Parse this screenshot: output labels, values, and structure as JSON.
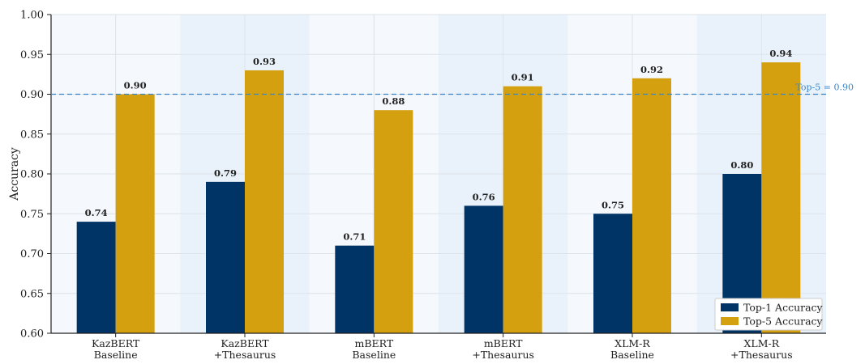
{
  "chart_data": {
    "type": "bar",
    "categories": [
      [
        "KazBERT",
        "Baseline"
      ],
      [
        "KazBERT",
        "+Thesaurus"
      ],
      [
        "mBERT",
        "Baseline"
      ],
      [
        "mBERT",
        "+Thesaurus"
      ],
      [
        "XLM-R",
        "Baseline"
      ],
      [
        "XLM-R",
        "+Thesaurus"
      ]
    ],
    "series": [
      {
        "name": "Top-1 Accuracy",
        "color": "#003366",
        "values": [
          0.74,
          0.79,
          0.71,
          0.76,
          0.75,
          0.8
        ],
        "labels": [
          "0.74",
          "0.79",
          "0.71",
          "0.76",
          "0.75",
          "0.80"
        ]
      },
      {
        "name": "Top-5 Accuracy",
        "color": "#D4A010",
        "values": [
          0.9,
          0.93,
          0.88,
          0.91,
          0.92,
          0.94
        ],
        "labels": [
          "0.90",
          "0.93",
          "0.88",
          "0.91",
          "0.92",
          "0.94"
        ]
      }
    ],
    "ylabel": "Accuracy",
    "ylim": [
      0.6,
      1.0
    ],
    "yticks": [
      "0.60",
      "0.65",
      "0.70",
      "0.75",
      "0.80",
      "0.85",
      "0.90",
      "0.95",
      "1.00"
    ],
    "reference_line": {
      "value": 0.9,
      "label": "Top-5 = 0.90",
      "color": "#3a86c8",
      "style": "dashed"
    },
    "highlighted_categories": [
      1,
      3,
      5
    ],
    "highlight_color": "#e9f2fa",
    "background_color": "#f5f8fc",
    "grid": true,
    "legend_position": "bottom-right"
  }
}
